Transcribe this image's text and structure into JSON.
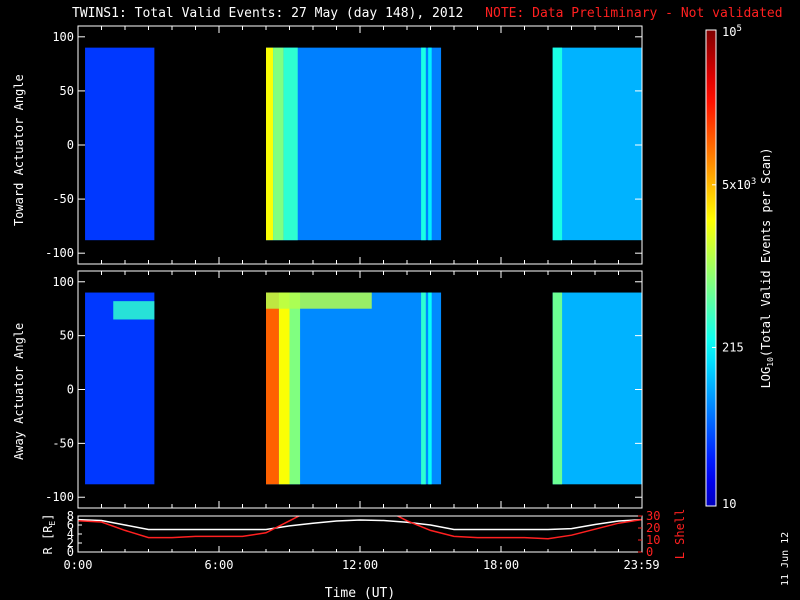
{
  "title": "TWINS1: Total Valid Events: 27 May (day 148), 2012",
  "note": "NOTE: Data Preliminary - Not validated",
  "date_stamp": "11 Jun 12",
  "colors": {
    "note": "#ff2020",
    "background": "#000000",
    "lshell_line": "#ff2020",
    "r_line": "#ffffff"
  },
  "chart_data": [
    {
      "type": "heatmap",
      "name": "toward",
      "ylabel": "Toward Actuator Angle",
      "xlim": [
        0,
        24
      ],
      "ylim": [
        -110,
        110
      ],
      "yticks": [
        100,
        50,
        0,
        -50,
        -100
      ],
      "ytick_labels": [
        "100",
        "50",
        "0",
        "-50",
        "-100"
      ],
      "data_y_range": [
        -88,
        90
      ],
      "blocks": [
        {
          "x_start": 0.3,
          "x_end": 3.25,
          "intensity": 0.18
        },
        {
          "x_start": 8.0,
          "x_end": 15.45,
          "intensity": 0.25
        },
        {
          "x_start": 20.2,
          "x_end": 24.0,
          "intensity": 0.3
        }
      ],
      "stripes": [
        {
          "x_start": 8.0,
          "x_end": 8.3,
          "intensity": 0.62
        },
        {
          "x_start": 8.3,
          "x_end": 8.75,
          "intensity": 0.5
        },
        {
          "x_start": 8.75,
          "x_end": 9.35,
          "intensity": 0.42
        },
        {
          "x_start": 14.6,
          "x_end": 14.8,
          "intensity": 0.4
        },
        {
          "x_start": 14.9,
          "x_end": 15.05,
          "intensity": 0.36
        },
        {
          "x_start": 20.2,
          "x_end": 20.6,
          "intensity": 0.4
        }
      ]
    },
    {
      "type": "heatmap",
      "name": "away",
      "ylabel": "Away Actuator Angle",
      "xlim": [
        0,
        24
      ],
      "ylim": [
        -110,
        110
      ],
      "yticks": [
        100,
        50,
        0,
        -50,
        -100
      ],
      "ytick_labels": [
        "100",
        "50",
        "0",
        "-50",
        "-100"
      ],
      "data_y_range": [
        -88,
        90
      ],
      "blocks": [
        {
          "x_start": 0.3,
          "x_end": 3.25,
          "intensity": 0.18
        },
        {
          "x_start": 8.0,
          "x_end": 15.45,
          "intensity": 0.26
        },
        {
          "x_start": 20.2,
          "x_end": 24.0,
          "intensity": 0.3
        }
      ],
      "stripes": [
        {
          "x_start": 8.0,
          "x_end": 8.55,
          "intensity": 0.78
        },
        {
          "x_start": 8.55,
          "x_end": 9.0,
          "intensity": 0.62
        },
        {
          "x_start": 9.0,
          "x_end": 9.45,
          "intensity": 0.5
        },
        {
          "x_start": 14.6,
          "x_end": 14.8,
          "intensity": 0.42
        },
        {
          "x_start": 14.9,
          "x_end": 15.05,
          "intensity": 0.38
        },
        {
          "x_start": 20.2,
          "x_end": 20.6,
          "intensity": 0.48
        }
      ],
      "top_bands": [
        {
          "x_start": 1.5,
          "x_end": 3.25,
          "y_start": 65,
          "y_end": 82,
          "intensity": 0.42
        },
        {
          "x_start": 8.0,
          "x_end": 12.5,
          "y_start": 75,
          "y_end": 90,
          "intensity": 0.55
        }
      ]
    },
    {
      "type": "line",
      "name": "orbit",
      "xlabel": "Time (UT)",
      "ylabel_left": "R [R",
      "ylabel_left_sub": "E",
      "ylabel_left_end": "]",
      "ylabel_right": "L Shell",
      "xlim": [
        0,
        24
      ],
      "ylim_left": [
        0,
        8
      ],
      "ylim_right": [
        0,
        30
      ],
      "xticks": [
        0,
        6,
        12,
        18,
        23.983
      ],
      "xtick_labels": [
        "0:00",
        "6:00",
        "12:00",
        "18:00",
        "23:59"
      ],
      "yticks_left": [
        0,
        2,
        4,
        6,
        8
      ],
      "ytick_labels_left": [
        "0",
        "2",
        "4",
        "6",
        "8"
      ],
      "yticks_right": [
        0,
        10,
        20,
        30
      ],
      "ytick_labels_right": [
        "0",
        "10",
        "20",
        "30"
      ],
      "series": [
        {
          "axis": "left",
          "color": "#ffffff",
          "x": [
            0,
            1,
            2,
            3,
            4,
            5,
            6,
            7,
            8,
            9,
            10,
            11,
            12,
            13,
            14,
            15,
            16,
            17,
            18,
            19,
            20,
            21,
            22,
            23,
            24
          ],
          "y": [
            7.2,
            7.0,
            6.0,
            5.0,
            5.0,
            5.0,
            5.0,
            5.0,
            5.0,
            5.8,
            6.4,
            6.9,
            7.1,
            7.0,
            6.6,
            6.0,
            5.0,
            5.0,
            5.0,
            5.0,
            5.0,
            5.2,
            6.1,
            6.9,
            7.2
          ]
        },
        {
          "axis": "right",
          "color": "#ff2020",
          "x": [
            0,
            1,
            2,
            3,
            4,
            5,
            6,
            7,
            8,
            9,
            9.5,
            13.5,
            14,
            15,
            16,
            17,
            18,
            19,
            20,
            21,
            22,
            23,
            24
          ],
          "y": [
            26,
            25,
            18,
            12,
            12,
            13,
            13,
            13,
            16,
            26,
            31,
            31,
            26,
            18,
            13,
            12,
            12,
            12,
            11,
            14,
            19,
            24,
            27
          ]
        }
      ]
    }
  ],
  "colorbar": {
    "label": "LOG",
    "label_sub": "10",
    "label_rest": "(Total Valid Events per Scan)",
    "scale": "log",
    "range": [
      10,
      100000
    ],
    "ticks": [
      {
        "value": 100000,
        "base": "10",
        "exp": "5"
      },
      {
        "value": 5000,
        "base": "5x10",
        "exp": "3"
      },
      {
        "value": 215,
        "base": "215",
        "exp": ""
      },
      {
        "value": 10,
        "base": "10",
        "exp": ""
      }
    ]
  }
}
